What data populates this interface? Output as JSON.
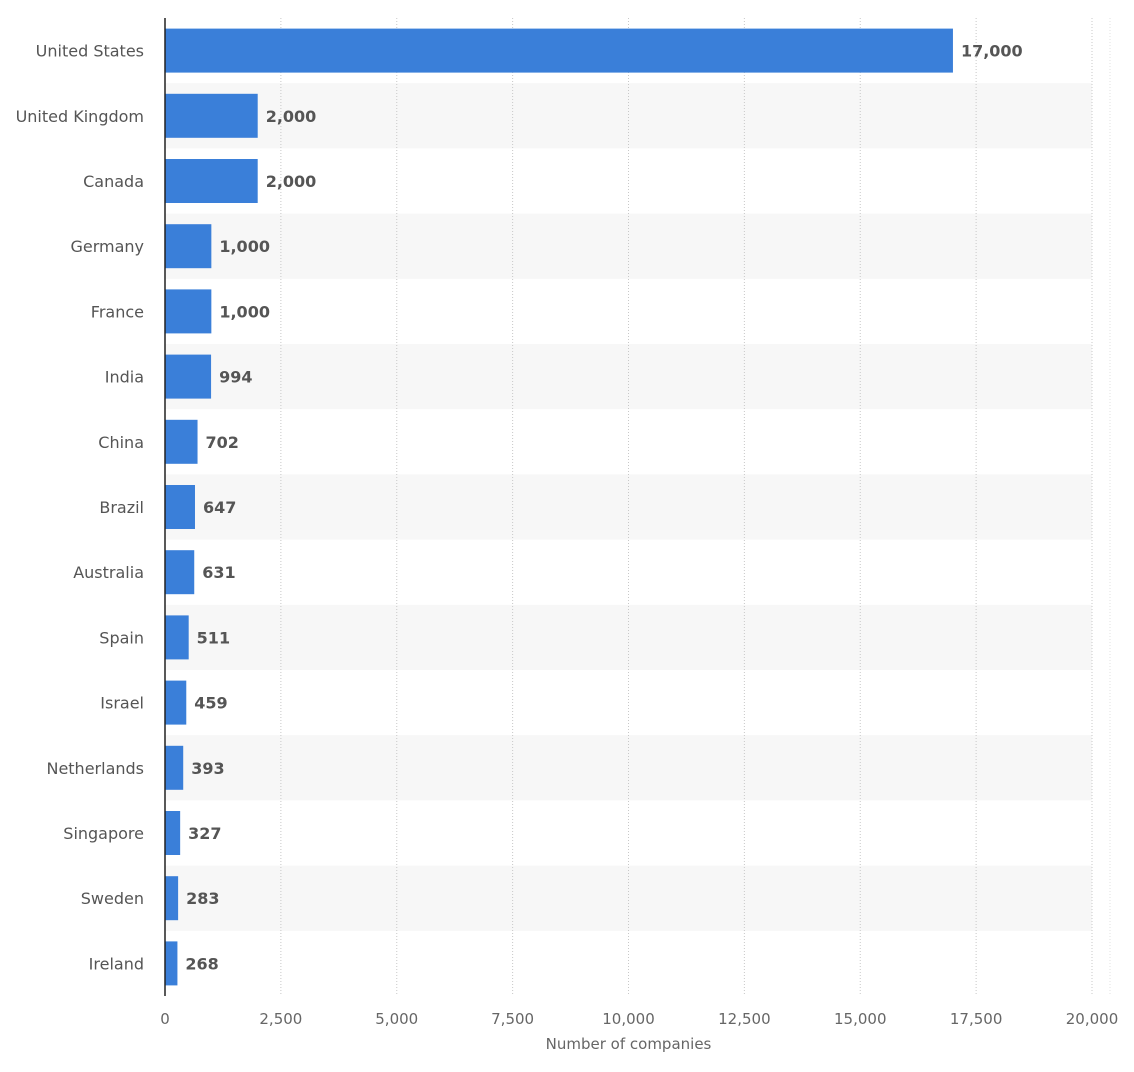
{
  "chart_data": {
    "type": "bar",
    "orientation": "horizontal",
    "categories": [
      "United States",
      "United Kingdom",
      "Canada",
      "Germany",
      "France",
      "India",
      "China",
      "Brazil",
      "Australia",
      "Spain",
      "Israel",
      "Netherlands",
      "Singapore",
      "Sweden",
      "Ireland"
    ],
    "values": [
      17000,
      2000,
      2000,
      1000,
      1000,
      994,
      702,
      647,
      631,
      511,
      459,
      393,
      327,
      283,
      268
    ],
    "value_labels": [
      "17,000",
      "2,000",
      "2,000",
      "1,000",
      "1,000",
      "994",
      "702",
      "647",
      "631",
      "511",
      "459",
      "393",
      "327",
      "283",
      "268"
    ],
    "xlabel": "Number of companies",
    "xlim": [
      0,
      20000
    ],
    "x_ticks": [
      0,
      2500,
      5000,
      7500,
      10000,
      12500,
      15000,
      17500,
      20000
    ],
    "x_tick_labels": [
      "0",
      "2,500",
      "5,000",
      "7,500",
      "10,000",
      "12,500",
      "15,000",
      "17,500",
      "20,000"
    ],
    "grid": true,
    "bar_color": "#3a7fd9",
    "band_color": "#f7f7f7"
  }
}
